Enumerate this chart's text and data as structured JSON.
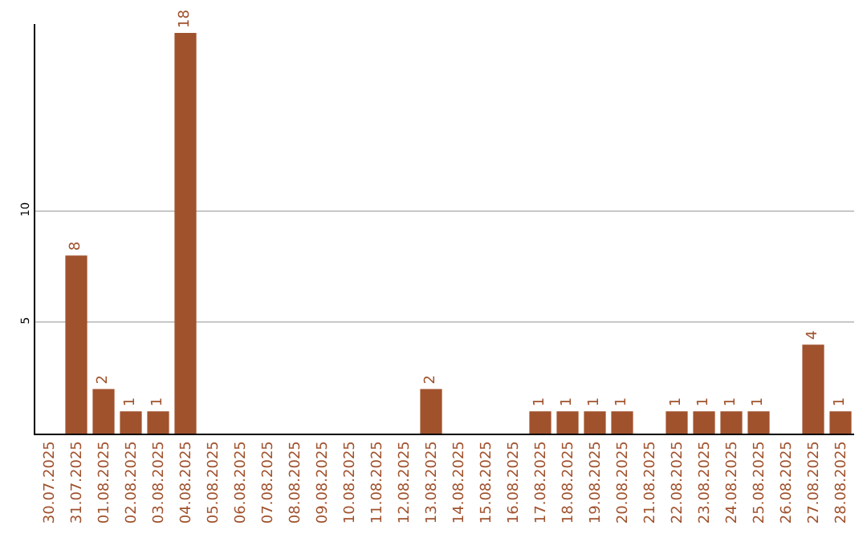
{
  "chart_data": {
    "type": "bar",
    "categories": [
      "30.07.2025",
      "31.07.2025",
      "01.08.2025",
      "02.08.2025",
      "03.08.2025",
      "04.08.2025",
      "05.08.2025",
      "06.08.2025",
      "07.08.2025",
      "08.08.2025",
      "09.08.2025",
      "10.08.2025",
      "11.08.2025",
      "12.08.2025",
      "13.08.2025",
      "14.08.2025",
      "15.08.2025",
      "16.08.2025",
      "17.08.2025",
      "18.08.2025",
      "19.08.2025",
      "20.08.2025",
      "21.08.2025",
      "22.08.2025",
      "23.08.2025",
      "24.08.2025",
      "25.08.2025",
      "26.08.2025",
      "27.08.2025",
      "28.08.2025"
    ],
    "values": [
      0,
      8,
      2,
      1,
      1,
      18,
      0,
      0,
      0,
      0,
      0,
      0,
      0,
      0,
      2,
      0,
      0,
      0,
      1,
      1,
      1,
      1,
      0,
      1,
      1,
      1,
      1,
      0,
      4,
      1
    ],
    "value_labels": [
      null,
      "8",
      "2",
      "1",
      "1",
      "18",
      null,
      null,
      null,
      null,
      null,
      null,
      null,
      null,
      "2",
      null,
      null,
      null,
      "1",
      "1",
      "1",
      "1",
      null,
      "1",
      "1",
      "1",
      "1",
      null,
      "4",
      "1"
    ],
    "color": "#a0522d",
    "ylim": [
      0,
      18.4
    ],
    "yticks": [
      5,
      10
    ],
    "grid": "y"
  }
}
